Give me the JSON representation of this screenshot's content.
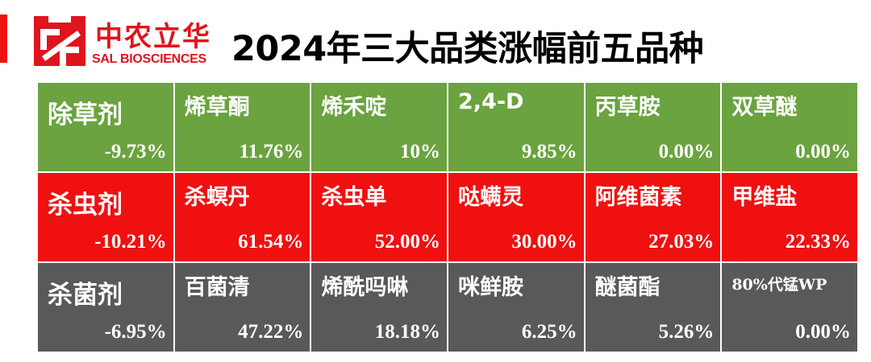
{
  "logo": {
    "cn": "中农立华",
    "en": "SAL BIOSCIENCES"
  },
  "title": "2024年三大品类涨幅前五品种",
  "colors": {
    "herbicide": "#6aa33f",
    "insecticide": "#f01010",
    "fungicide": "#595959",
    "brand": "#e0141c"
  },
  "rows": [
    {
      "category": "除草剂",
      "category_change": "-9.73%",
      "items": [
        {
          "name": "烯草酮",
          "change": "11.76%"
        },
        {
          "name": "烯禾啶",
          "change": "10%"
        },
        {
          "name": "2,4-D",
          "change": "9.85%"
        },
        {
          "name": "丙草胺",
          "change": "0.00%"
        },
        {
          "name": "双草醚",
          "change": "0.00%"
        }
      ]
    },
    {
      "category": "杀虫剂",
      "category_change": "-10.21%",
      "items": [
        {
          "name": "杀螟丹",
          "change": "61.54%"
        },
        {
          "name": "杀虫单",
          "change": "52.00%"
        },
        {
          "name": "哒螨灵",
          "change": "30.00%"
        },
        {
          "name": "阿维菌素",
          "change": "27.03%"
        },
        {
          "name": "甲维盐",
          "change": "22.33%"
        }
      ]
    },
    {
      "category": "杀菌剂",
      "category_change": "-6.95%",
      "items": [
        {
          "name": "百菌清",
          "change": "47.22%"
        },
        {
          "name": "烯酰吗啉",
          "change": "18.18%"
        },
        {
          "name": "咪鲜胺",
          "change": "6.25%"
        },
        {
          "name": "醚菌酯",
          "change": "5.26%"
        },
        {
          "name": "80%代锰WP",
          "change": "0.00%"
        }
      ]
    }
  ]
}
